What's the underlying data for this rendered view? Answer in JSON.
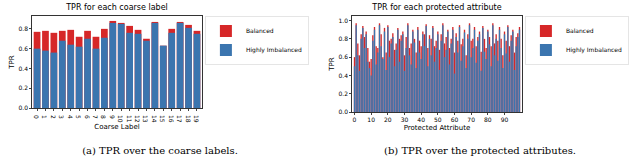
{
  "chart_data": [
    {
      "type": "bar",
      "title": "TPR for each coarse label",
      "x_label": "Coarse Label",
      "y_label": "TPR",
      "caption": "(a) TPR over the coarse labels.",
      "categories": [
        "0",
        "1",
        "2",
        "3",
        "4",
        "5",
        "6",
        "7",
        "8",
        "9",
        "10",
        "11",
        "12",
        "13",
        "14",
        "15",
        "16",
        "17",
        "18",
        "19"
      ],
      "series": [
        {
          "name": "Balanced",
          "color": "#d62728",
          "values": [
            0.77,
            0.78,
            0.76,
            0.78,
            0.79,
            0.72,
            0.78,
            0.72,
            0.8,
            0.88,
            0.86,
            0.83,
            0.79,
            0.7,
            0.87,
            0.63,
            0.8,
            0.87,
            0.84,
            0.78
          ]
        },
        {
          "name": "Highly Imbalanced",
          "color": "#3b75af",
          "values": [
            0.6,
            0.58,
            0.56,
            0.68,
            0.64,
            0.62,
            0.7,
            0.6,
            0.71,
            0.86,
            0.85,
            0.76,
            0.75,
            0.68,
            0.86,
            0.63,
            0.76,
            0.86,
            0.81,
            0.75
          ]
        }
      ],
      "ylim": [
        0,
        0.93
      ],
      "yticks": [
        {
          "value": 0,
          "label": "0.0"
        },
        {
          "value": 0.2,
          "label": "0.2"
        },
        {
          "value": 0.4,
          "label": "0.4"
        },
        {
          "value": 0.6,
          "label": "0.6"
        },
        {
          "value": 0.8,
          "label": "0.8"
        }
      ],
      "grid": false
    },
    {
      "type": "bar",
      "title": "TPR for each protected attribute",
      "x_label": "Protected Attribute",
      "y_label": "TPR",
      "caption": "(b) TPR over the protected attributes.",
      "x": [
        0,
        1,
        2,
        3,
        4,
        5,
        6,
        7,
        8,
        9,
        10,
        11,
        12,
        13,
        14,
        15,
        16,
        17,
        18,
        19,
        20,
        21,
        22,
        23,
        24,
        25,
        26,
        27,
        28,
        29,
        30,
        31,
        32,
        33,
        34,
        35,
        36,
        37,
        38,
        39,
        40,
        41,
        42,
        43,
        44,
        45,
        46,
        47,
        48,
        49,
        50,
        51,
        52,
        53,
        54,
        55,
        56,
        57,
        58,
        59,
        60,
        61,
        62,
        63,
        64,
        65,
        66,
        67,
        68,
        69,
        70,
        71,
        72,
        73,
        74,
        75,
        76,
        77,
        78,
        79,
        80,
        81,
        82,
        83,
        84,
        85,
        86,
        87,
        88,
        89,
        90,
        91,
        92,
        93,
        94,
        95,
        96,
        97,
        98,
        99
      ],
      "series": [
        {
          "name": "Balanced",
          "color": "#d62728",
          "values": [
            0.6,
            0.97,
            0.75,
            0.62,
            0.85,
            0.94,
            0.82,
            0.88,
            0.7,
            0.55,
            0.58,
            0.84,
            0.93,
            0.72,
            0.7,
            0.97,
            0.85,
            0.6,
            0.92,
            0.65,
            0.95,
            0.78,
            0.8,
            0.86,
            0.68,
            0.75,
            0.92,
            0.8,
            0.84,
            0.88,
            0.62,
            0.82,
            0.97,
            0.7,
            0.75,
            0.9,
            0.8,
            0.65,
            0.93,
            0.78,
            0.72,
            0.88,
            0.85,
            0.96,
            0.7,
            0.84,
            0.8,
            0.94,
            0.72,
            0.78,
            0.88,
            0.68,
            0.85,
            0.97,
            0.75,
            0.82,
            0.9,
            0.7,
            0.8,
            0.93,
            0.65,
            0.86,
            0.78,
            0.95,
            0.74,
            0.8,
            0.9,
            0.62,
            0.85,
            0.97,
            0.78,
            0.8,
            0.93,
            0.72,
            0.82,
            0.88,
            0.66,
            0.94,
            0.8,
            0.7,
            0.9,
            0.82,
            0.72,
            0.97,
            0.75,
            0.85,
            0.78,
            0.93,
            0.8,
            0.62,
            0.88,
            0.78,
            0.95,
            0.72,
            0.84,
            0.9,
            0.65,
            0.82,
            0.86,
            0.93
          ]
        },
        {
          "name": "Highly Imbalanced",
          "color": "#3b75af",
          "values": [
            0.5,
            0.95,
            0.62,
            0.45,
            0.8,
            0.92,
            0.7,
            0.85,
            0.55,
            0.48,
            0.4,
            0.78,
            0.9,
            0.52,
            0.65,
            0.95,
            0.72,
            0.58,
            0.88,
            0.46,
            0.93,
            0.6,
            0.75,
            0.82,
            0.5,
            0.68,
            0.9,
            0.55,
            0.78,
            0.85,
            0.45,
            0.7,
            0.95,
            0.62,
            0.52,
            0.88,
            0.76,
            0.48,
            0.9,
            0.65,
            0.58,
            0.85,
            0.72,
            0.94,
            0.5,
            0.8,
            0.62,
            0.92,
            0.55,
            0.7,
            0.85,
            0.46,
            0.78,
            0.95,
            0.6,
            0.68,
            0.88,
            0.52,
            0.75,
            0.9,
            0.42,
            0.82,
            0.65,
            0.93,
            0.56,
            0.72,
            0.87,
            0.48,
            0.8,
            0.95,
            0.6,
            0.7,
            0.9,
            0.54,
            0.78,
            0.85,
            0.45,
            0.92,
            0.66,
            0.58,
            0.88,
            0.74,
            0.5,
            0.95,
            0.62,
            0.8,
            0.56,
            0.9,
            0.7,
            0.48,
            0.85,
            0.64,
            0.93,
            0.55,
            0.78,
            0.88,
            0.46,
            0.72,
            0.82,
            0.9
          ]
        }
      ],
      "xlim": [
        -1.5,
        100.5
      ],
      "xticks": [
        0,
        10,
        20,
        30,
        40,
        50,
        60,
        70,
        80,
        90
      ],
      "ylim": [
        0,
        1.05
      ],
      "yticks": [
        {
          "value": 0,
          "label": "0.0"
        },
        {
          "value": 0.2,
          "label": "0.2"
        },
        {
          "value": 0.4,
          "label": "0.4"
        },
        {
          "value": 0.6,
          "label": "0.6"
        },
        {
          "value": 0.8,
          "label": "0.8"
        },
        {
          "value": 1,
          "label": "1.0"
        }
      ],
      "grid": false
    }
  ]
}
